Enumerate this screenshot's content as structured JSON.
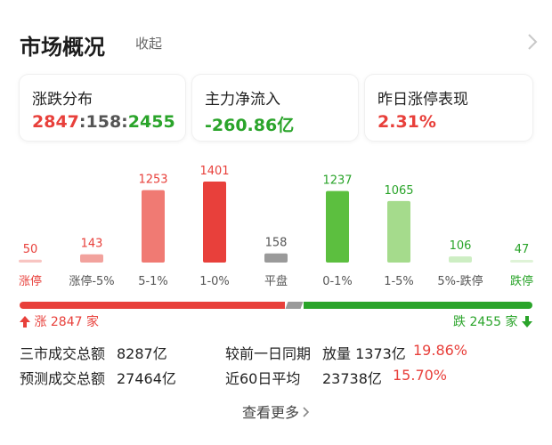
{
  "header": {
    "title": "市场概况",
    "collapse_label": "收起",
    "chevron_icon": "chevron-right-icon"
  },
  "cards": {
    "distribution": {
      "label": "涨跌分布",
      "up": "2847",
      "sep1": ":",
      "flat": "158",
      "sep2": ":",
      "down": "2455"
    },
    "main_flow": {
      "label": "主力净流入",
      "value": "-260.86亿"
    },
    "limit_up": {
      "label": "昨日涨停表现",
      "value": "2.31%"
    }
  },
  "colors": {
    "red": "#e8403b",
    "light_red": "#f07a73",
    "pale_red": "#f8c5c2",
    "green": "#2aa42a",
    "light_green": "#8fd67a",
    "pale_green": "#cdeec3",
    "gray": "#9a9a9a"
  },
  "chart_data": {
    "type": "bar",
    "categories": [
      "涨停",
      "涨停-5%",
      "5-1%",
      "1-0%",
      "平盘",
      "0-1%",
      "1-5%",
      "5%-跌停",
      "跌停"
    ],
    "values": [
      50,
      143,
      1253,
      1401,
      158,
      1237,
      1065,
      106,
      47
    ],
    "bar_colors": [
      "#f8c5c2",
      "#f2a29d",
      "#f07a73",
      "#e8403b",
      "#9a9a9a",
      "#5cbf3f",
      "#a5db8c",
      "#cdeec3",
      "#dff3d7"
    ],
    "label_colors": [
      "#e8403b",
      "#e8403b",
      "#e8403b",
      "#e8403b",
      "#555555",
      "#2aa42a",
      "#2aa42a",
      "#2aa42a",
      "#2aa42a"
    ],
    "category_colors": [
      "#e8403b",
      "#555555",
      "#555555",
      "#555555",
      "#555555",
      "#555555",
      "#555555",
      "#555555",
      "#2aa42a"
    ],
    "ylim": [
      0,
      1401
    ]
  },
  "ratio_bar": {
    "up": 2847,
    "flat": 158,
    "down": 2455,
    "up_label": "涨 2847 家",
    "down_label": "跌 2455 家"
  },
  "stats": {
    "row1": {
      "left_label": "三市成交总额",
      "left_value": "8287亿",
      "right_label": "较前一日同期",
      "right_value": "放量 1373亿",
      "right_extra": "19.86%"
    },
    "row2": {
      "left_label": "预测成交总额",
      "left_value": "27464亿",
      "right_label": "近60日平均",
      "right_value": "23738亿",
      "right_extra": "15.70%"
    }
  },
  "footer": {
    "more_label": "查看更多"
  }
}
